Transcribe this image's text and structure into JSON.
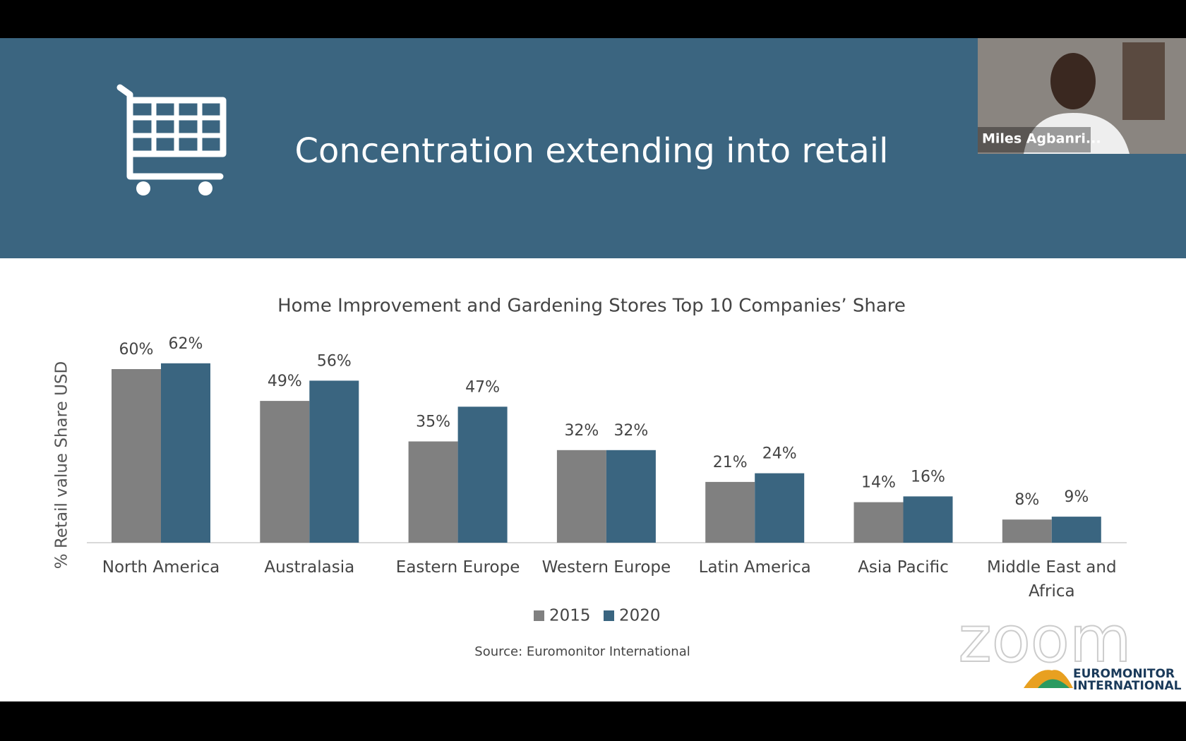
{
  "header": {
    "title": "Concentration extending into retail"
  },
  "video": {
    "name": "Miles Agbanri..."
  },
  "chart_data": {
    "type": "bar",
    "title": "Home Improvement and Gardening Stores Top 10 Companies’ Share",
    "y_label": "% Retail value Share USD",
    "categories": [
      "North America",
      "Australasia",
      "Eastern Europe",
      "Western Europe",
      "Latin America",
      "Asia Pacific",
      "Middle East and Africa"
    ],
    "series": [
      {
        "name": "2015",
        "color": "#808080",
        "values": [
          60,
          49,
          35,
          32,
          21,
          14,
          8
        ],
        "value_labels": [
          "60%",
          "49%",
          "35%",
          "32%",
          "21%",
          "14%",
          "8%"
        ]
      },
      {
        "name": "2020",
        "color": "#3a6580",
        "values": [
          62,
          56,
          47,
          32,
          24,
          16,
          9
        ],
        "value_labels": [
          "62%",
          "56%",
          "47%",
          "32%",
          "24%",
          "16%",
          "9%"
        ]
      }
    ],
    "legend": "bottom",
    "source": "Source: Euromonitor International"
  },
  "watermark": {
    "zoom": "zoom",
    "brand": [
      "EUROMONITOR",
      "INTERNATIONAL"
    ]
  }
}
